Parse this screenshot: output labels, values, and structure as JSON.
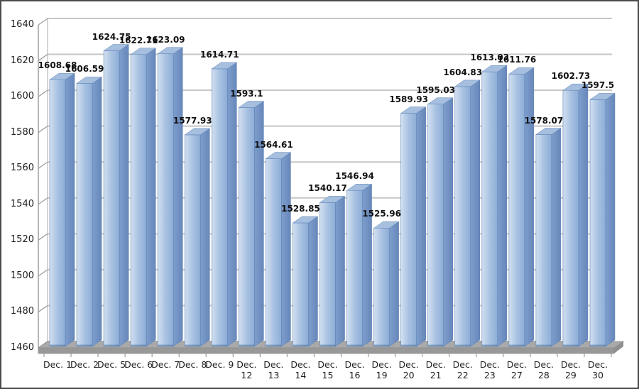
{
  "chart_data": {
    "type": "bar",
    "style": "3d-clustered-column",
    "title": "",
    "xlabel": "",
    "ylabel": "",
    "legend": "none",
    "grid": true,
    "ylim": [
      1460,
      1640
    ],
    "ytick_step": 20,
    "yticks": [
      1460,
      1480,
      1500,
      1520,
      1540,
      1560,
      1580,
      1600,
      1620,
      1640
    ],
    "categories": [
      "Dec. 1",
      "Dec. 2",
      "Dec. 5",
      "Dec. 6",
      "Dec. 7",
      "Dec. 8",
      "Dec. 9",
      "Dec. 12",
      "Dec. 13",
      "Dec. 14",
      "Dec. 15",
      "Dec. 16",
      "Dec. 19",
      "Dec. 20",
      "Dec. 21",
      "Dec. 22",
      "Dec. 23",
      "Dec. 27",
      "Dec. 28",
      "Dec. 29",
      "Dec. 30"
    ],
    "values": [
      1608.68,
      1606.59,
      1624.75,
      1622.71,
      1623.09,
      1577.93,
      1614.71,
      1593.1,
      1564.61,
      1528.85,
      1540.17,
      1546.94,
      1525.96,
      1589.93,
      1595.03,
      1604.83,
      1613.03,
      1611.76,
      1578.07,
      1602.73,
      1597.5
    ],
    "data_labels": [
      "1608.68",
      "1606.59",
      "1624.75",
      "1622.71",
      "1623.09",
      "1577.93",
      "1614.71",
      "1593.1",
      "1564.61",
      "1528.85",
      "1540.17",
      "1546.94",
      "1525.96",
      "1589.93",
      "1595.03",
      "1604.83",
      "1613.03",
      "1611.76",
      "1578.07",
      "1602.73",
      "1597.5"
    ],
    "colors": {
      "bar_front_light": "#d2e0f0",
      "bar_front_mid": "#a9c2e2",
      "bar_front_dark": "#8cadd6",
      "bar_side_light": "#7e9ecd",
      "bar_side_dark": "#6787ba",
      "bar_top": "#a6bfdf",
      "bar_edge": "#5d82b5",
      "bar_base_shade": "#54779f",
      "gridline": "#c6c6c6",
      "axis_line": "#9e9e9e",
      "floor_top": "#a9a9a9",
      "floor_front": "#989898",
      "floor_side": "#8f8f8f",
      "label_text": "#1f1f1f",
      "background": "#ffffff",
      "frame_border": "#4b4b4b"
    }
  }
}
